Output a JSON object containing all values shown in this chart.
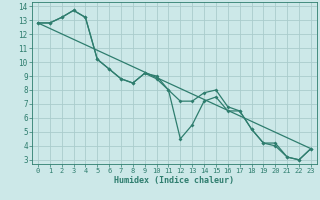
{
  "xlabel": "Humidex (Indice chaleur)",
  "background_color": "#cce8e8",
  "grid_color": "#aacccc",
  "line_color": "#2e7d6e",
  "xlim": [
    -0.5,
    23.5
  ],
  "ylim": [
    2.7,
    14.3
  ],
  "xticks": [
    0,
    1,
    2,
    3,
    4,
    5,
    6,
    7,
    8,
    9,
    10,
    11,
    12,
    13,
    14,
    15,
    16,
    17,
    18,
    19,
    20,
    21,
    22,
    23
  ],
  "yticks": [
    3,
    4,
    5,
    6,
    7,
    8,
    9,
    10,
    11,
    12,
    13,
    14
  ],
  "line1_x": [
    0,
    1,
    2,
    3,
    4,
    5,
    6,
    7,
    8,
    9,
    10,
    11,
    12,
    13,
    14,
    15,
    16,
    17,
    18,
    19,
    20,
    21,
    22,
    23
  ],
  "line1_y": [
    12.8,
    12.8,
    13.2,
    13.7,
    13.2,
    10.2,
    9.5,
    8.8,
    8.5,
    9.2,
    8.8,
    8.0,
    4.5,
    5.5,
    7.2,
    7.5,
    6.5,
    6.5,
    5.2,
    4.2,
    4.0,
    3.2,
    3.0,
    3.8
  ],
  "line2_x": [
    0,
    1,
    2,
    3,
    4,
    5,
    6,
    7,
    8,
    9,
    10,
    11,
    12,
    13,
    14,
    15,
    16,
    17,
    18,
    19,
    20,
    21,
    22,
    23
  ],
  "line2_y": [
    12.8,
    12.8,
    13.2,
    13.7,
    13.2,
    10.2,
    9.5,
    8.8,
    8.5,
    9.2,
    9.0,
    8.0,
    7.2,
    7.2,
    7.8,
    8.0,
    6.8,
    6.5,
    5.2,
    4.2,
    4.2,
    3.2,
    3.0,
    3.8
  ],
  "line3_x": [
    0,
    23
  ],
  "line3_y": [
    12.8,
    3.8
  ],
  "marker_size": 2.0,
  "line_width": 0.9
}
